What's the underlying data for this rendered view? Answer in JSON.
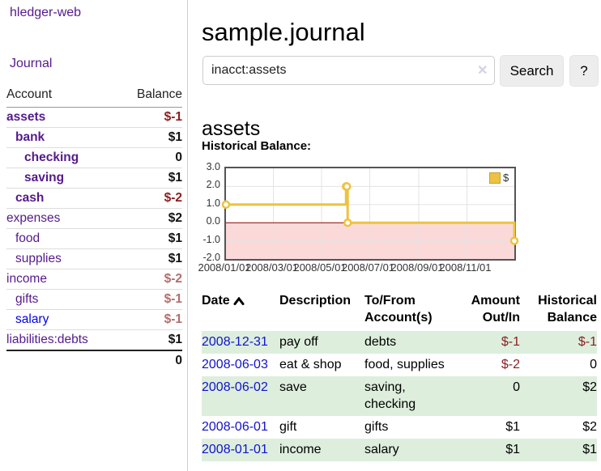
{
  "app": {
    "brand": "hledger-web"
  },
  "colors": {
    "accent_purple": "#551a8b",
    "link_blue_unvisited": "#0000ee",
    "date_link_blue": "#1212cc",
    "negative_strong_red": "#8b1e1e",
    "negative_soft_red": "#b36d6d",
    "row_stripe_green": "#ddeedd",
    "chart_line_gold": "#edc240",
    "chart_negative_fill": "#fbd9d9",
    "chart_zero_line": "#8b0000",
    "chart_border": "#545454"
  },
  "sidebar": {
    "nav_journal": "Journal",
    "accounts": {
      "headers": {
        "account": "Account",
        "balance": "Balance"
      },
      "rows": [
        {
          "name": "assets",
          "indent": 0,
          "bold": true,
          "balance": "$-1",
          "balance_style": "neg-strong"
        },
        {
          "name": "bank",
          "indent": 1,
          "bold": true,
          "balance": "$1",
          "balance_style": "pos"
        },
        {
          "name": "checking",
          "indent": 2,
          "bold": true,
          "balance": "0",
          "balance_style": "pos"
        },
        {
          "name": "saving",
          "indent": 2,
          "bold": true,
          "balance": "$1",
          "balance_style": "pos"
        },
        {
          "name": "cash",
          "indent": 1,
          "bold": true,
          "balance": "$-2",
          "balance_style": "neg-strong"
        },
        {
          "name": "expenses",
          "indent": 0,
          "bold": false,
          "balance": "$2",
          "balance_style": "pos"
        },
        {
          "name": "food",
          "indent": 1,
          "bold": false,
          "balance": "$1",
          "balance_style": "pos"
        },
        {
          "name": "supplies",
          "indent": 1,
          "bold": false,
          "balance": "$1",
          "balance_style": "pos"
        },
        {
          "name": "income",
          "indent": 0,
          "bold": false,
          "balance": "$-2",
          "balance_style": "neg-soft"
        },
        {
          "name": "gifts",
          "indent": 1,
          "bold": false,
          "balance": "$-1",
          "balance_style": "neg-soft"
        },
        {
          "name": "salary",
          "indent": 1,
          "bold": false,
          "link_color": "blue",
          "balance": "$-1",
          "balance_style": "neg-soft"
        },
        {
          "name": "liabilities:debts",
          "indent": 0,
          "bold": false,
          "balance": "$1",
          "balance_style": "pos"
        }
      ],
      "total": "0"
    }
  },
  "main": {
    "title": "sample.journal",
    "search": {
      "value": "inacct:assets",
      "clear_icon": "✕",
      "search_button": "Search",
      "help_button": "?"
    },
    "account_heading": "assets",
    "chart_label": "Historical Balance:"
  },
  "chart_data": {
    "type": "line",
    "title": "Historical Balance",
    "step": true,
    "series": [
      {
        "name": "$",
        "color": "#edc240",
        "points": [
          [
            "2008-01-01",
            1
          ],
          [
            "2008-06-01",
            2
          ],
          [
            "2008-06-02",
            2
          ],
          [
            "2008-06-03",
            0
          ],
          [
            "2008-12-31",
            -1
          ]
        ]
      }
    ],
    "x_range": [
      "2008-01-01",
      "2008-12-31"
    ],
    "ylim": [
      -2,
      3
    ],
    "yticks": [
      3.0,
      2.0,
      1.0,
      0.0,
      -1.0,
      -2.0
    ],
    "ytick_labels": [
      "3.0",
      "2.0",
      "1.0",
      "0.0",
      "-1.0",
      "-2.0"
    ],
    "xticks": [
      "2008/01/01",
      "2008/03/01",
      "2008/05/01",
      "2008/07/01",
      "2008/09/01",
      "2008/11/01"
    ],
    "grid": true,
    "gridline_yvalues": [
      2,
      1,
      -1
    ],
    "negative_region_fill": "#fbd9d9",
    "zero_line_color": "#8b0000",
    "legend_position": "top-right",
    "legend_label": "$"
  },
  "transactions": {
    "headers": [
      "Date",
      "Description",
      "To/From Account(s)",
      "Amount Out/In",
      "Historical Balance"
    ],
    "sort": "ascending",
    "rows": [
      {
        "date": "2008-12-31",
        "description": "pay off",
        "accounts": [
          "debts"
        ],
        "amount": "$-1",
        "balance": "$-1"
      },
      {
        "date": "2008-06-03",
        "description": "eat & shop",
        "accounts": [
          "food",
          "supplies"
        ],
        "amount": "$-2",
        "balance": "0"
      },
      {
        "date": "2008-06-02",
        "description": "save",
        "accounts": [
          "saving",
          "checking"
        ],
        "amount": "0",
        "balance": "$2"
      },
      {
        "date": "2008-06-01",
        "description": "gift",
        "accounts": [
          "gifts"
        ],
        "amount": "$1",
        "balance": "$2"
      },
      {
        "date": "2008-01-01",
        "description": "income",
        "accounts": [
          "salary"
        ],
        "amount": "$1",
        "balance": "$1"
      }
    ]
  }
}
